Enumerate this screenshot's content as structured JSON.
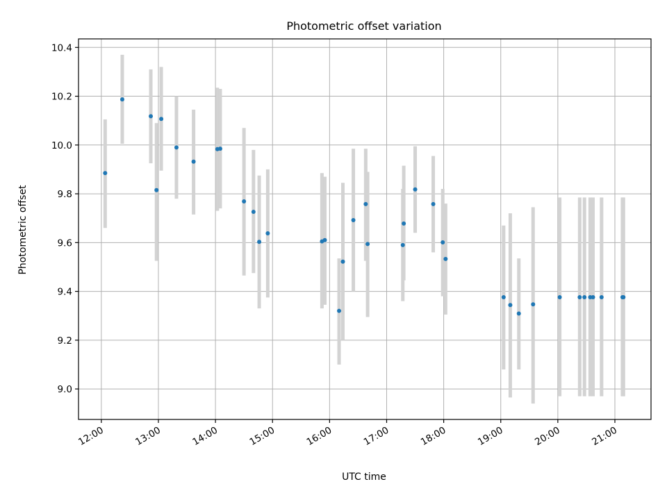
{
  "chart_data": {
    "type": "scatter",
    "title": "Photometric offset variation",
    "xlabel": "UTC time",
    "ylabel": "Photometric offset",
    "xlim": [
      "11:36",
      "21:38"
    ],
    "ylim": [
      8.875,
      10.435
    ],
    "grid": true,
    "x_ticks": [
      "12:00",
      "13:00",
      "14:00",
      "15:00",
      "16:00",
      "17:00",
      "18:00",
      "19:00",
      "20:00",
      "21:00"
    ],
    "y_ticks": [
      9.0,
      9.2,
      9.4,
      9.6,
      9.8,
      10.0,
      10.2,
      10.4
    ],
    "colors": {
      "points": "#1f77b4",
      "errorbars": "#d3d3d3",
      "grid": "#b0b0b0"
    },
    "series": [
      {
        "x": [
          "12:04",
          "12:22",
          "12:52",
          "12:58",
          "13:03",
          "13:19",
          "13:37",
          "14:02",
          "14:05",
          "14:30",
          "14:40",
          "14:46",
          "14:55",
          "15:52",
          "15:55",
          "16:10",
          "16:14",
          "16:25",
          "16:38",
          "16:40",
          "17:17",
          "17:18",
          "17:30",
          "17:49",
          "17:59",
          "18:02",
          "19:03",
          "19:10",
          "19:19",
          "19:34",
          "20:02",
          "20:23",
          "20:28",
          "20:34",
          "20:37",
          "20:46",
          "21:08",
          "21:09"
        ],
        "y": [
          9.885,
          10.187,
          10.118,
          9.815,
          10.107,
          9.99,
          9.932,
          9.983,
          9.985,
          9.769,
          9.726,
          9.603,
          9.638,
          9.605,
          9.61,
          9.32,
          9.522,
          9.692,
          9.758,
          9.594,
          9.59,
          9.678,
          9.818,
          9.758,
          9.601,
          9.533,
          9.376,
          9.344,
          9.309,
          9.347,
          9.376,
          9.376,
          9.376,
          9.376,
          9.376,
          9.376,
          9.376,
          9.376
        ],
        "err_low": [
          9.66,
          10.005,
          9.925,
          9.525,
          9.895,
          9.78,
          9.715,
          9.73,
          9.74,
          9.465,
          9.475,
          9.33,
          9.375,
          9.33,
          9.345,
          9.1,
          9.2,
          9.4,
          9.525,
          9.295,
          9.36,
          9.445,
          9.64,
          9.56,
          9.38,
          9.305,
          9.08,
          8.965,
          9.08,
          8.94,
          8.97,
          8.97,
          8.97,
          8.97,
          8.97,
          8.97,
          8.97,
          8.97
        ],
        "err_high": [
          10.105,
          10.37,
          10.31,
          10.09,
          10.32,
          10.2,
          10.145,
          10.235,
          10.23,
          10.07,
          9.98,
          9.875,
          9.9,
          9.885,
          9.87,
          9.535,
          9.845,
          9.985,
          9.985,
          9.89,
          9.82,
          9.915,
          9.995,
          9.955,
          9.82,
          9.76,
          9.67,
          9.72,
          9.535,
          9.745,
          9.785,
          9.785,
          9.785,
          9.785,
          9.785,
          9.785,
          9.785,
          9.785
        ]
      }
    ]
  }
}
